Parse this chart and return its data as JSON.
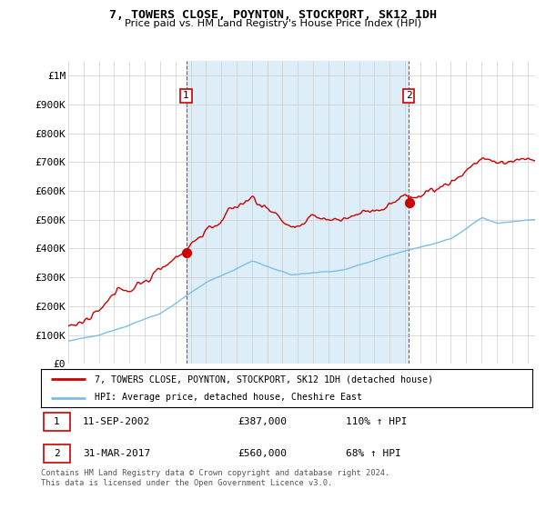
{
  "title": "7, TOWERS CLOSE, POYNTON, STOCKPORT, SK12 1DH",
  "subtitle": "Price paid vs. HM Land Registry's House Price Index (HPI)",
  "legend_line1": "7, TOWERS CLOSE, POYNTON, STOCKPORT, SK12 1DH (detached house)",
  "legend_line2": "HPI: Average price, detached house, Cheshire East",
  "transaction1_date": "11-SEP-2002",
  "transaction1_price": "£387,000",
  "transaction1_hpi": "110% ↑ HPI",
  "transaction2_date": "31-MAR-2017",
  "transaction2_price": "£560,000",
  "transaction2_hpi": "68% ↑ HPI",
  "footnote": "Contains HM Land Registry data © Crown copyright and database right 2024.\nThis data is licensed under the Open Government Licence v3.0.",
  "ylabel_ticks": [
    "£0",
    "£100K",
    "£200K",
    "£300K",
    "£400K",
    "£500K",
    "£600K",
    "£700K",
    "£800K",
    "£900K",
    "£1M"
  ],
  "ytick_values": [
    0,
    100000,
    200000,
    300000,
    400000,
    500000,
    600000,
    700000,
    800000,
    900000,
    1000000
  ],
  "hpi_color": "#7bbfe8",
  "price_color": "#cc0000",
  "shade_color": "#deeef8",
  "marker1_year": 2002.7,
  "marker1_price": 387000,
  "marker2_year": 2017.25,
  "marker2_price": 560000,
  "background_color": "#ffffff",
  "grid_color": "#cccccc",
  "xstart": 1995,
  "xend": 2025.5
}
